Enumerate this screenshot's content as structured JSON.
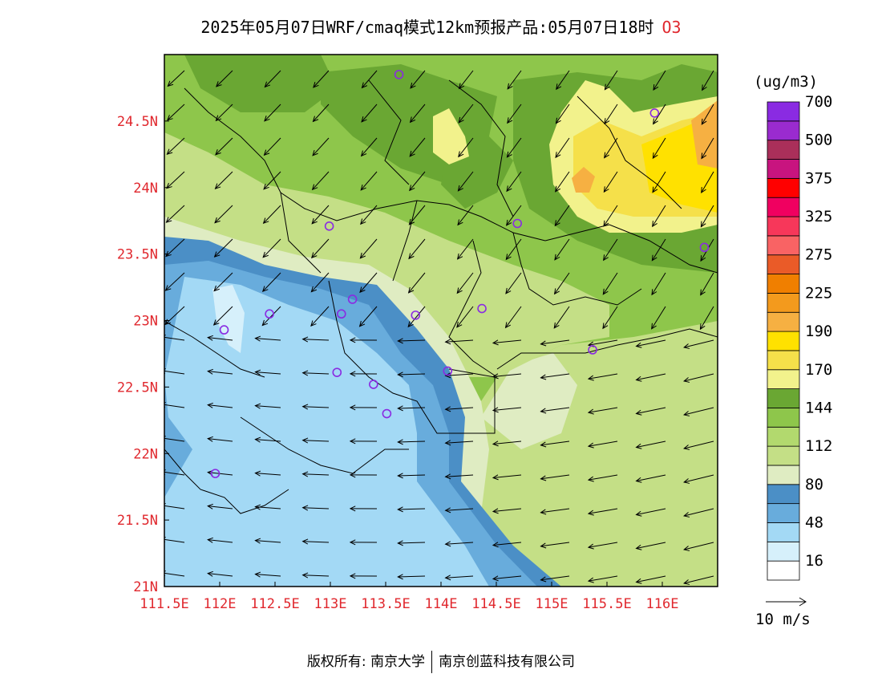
{
  "title": {
    "text": "2025年05月07日WRF/cmaq模式12km预报产品:05月07日18时",
    "pollutant": "O3"
  },
  "map": {
    "lon_range": [
      111.5,
      116.5
    ],
    "lat_range": [
      21.0,
      25.0
    ],
    "x_ticks": [
      {
        "value": 111.5,
        "label": "111.5E"
      },
      {
        "value": 112.0,
        "label": "112E"
      },
      {
        "value": 112.5,
        "label": "112.5E"
      },
      {
        "value": 113.0,
        "label": "113E"
      },
      {
        "value": 113.5,
        "label": "113.5E"
      },
      {
        "value": 114.0,
        "label": "114E"
      },
      {
        "value": 114.5,
        "label": "114.5E"
      },
      {
        "value": 115.0,
        "label": "115E"
      },
      {
        "value": 115.5,
        "label": "115.5E"
      },
      {
        "value": 116.0,
        "label": "116E"
      }
    ],
    "y_ticks": [
      {
        "value": 21.0,
        "label": "21N"
      },
      {
        "value": 21.5,
        "label": "21.5N"
      },
      {
        "value": 22.0,
        "label": "22N"
      },
      {
        "value": 22.5,
        "label": "22.5N"
      },
      {
        "value": 23.0,
        "label": "23N"
      },
      {
        "value": 23.5,
        "label": "23.5N"
      },
      {
        "value": 24.0,
        "label": "24N"
      },
      {
        "value": 24.5,
        "label": "24.5N"
      }
    ],
    "colors": {
      "deep_ocean": "#4b8fc6",
      "mid_blue": "#68acdc",
      "light_blue": "#a3d9f5",
      "pale_blue": "#d6f0fb",
      "pale_green": "#dfecc2",
      "light_green": "#c4df86",
      "green": "#a9d36b",
      "mid_green": "#8ec64b",
      "dark_green": "#6aa733",
      "pale_yellow": "#f2f28c",
      "yellow": "#f5e04a",
      "gold": "#ffe100",
      "orange": "#f6b042",
      "station": "#8a2be2"
    },
    "stations": [
      {
        "lon": 113.62,
        "lat": 24.85
      },
      {
        "lon": 115.93,
        "lat": 24.56
      },
      {
        "lon": 112.99,
        "lat": 23.71
      },
      {
        "lon": 114.69,
        "lat": 23.73
      },
      {
        "lon": 116.38,
        "lat": 23.55
      },
      {
        "lon": 113.2,
        "lat": 23.16
      },
      {
        "lon": 112.45,
        "lat": 23.05
      },
      {
        "lon": 113.1,
        "lat": 23.05
      },
      {
        "lon": 113.77,
        "lat": 23.04
      },
      {
        "lon": 114.37,
        "lat": 23.09
      },
      {
        "lon": 112.04,
        "lat": 22.93
      },
      {
        "lon": 115.37,
        "lat": 22.78
      },
      {
        "lon": 114.06,
        "lat": 22.62
      },
      {
        "lon": 113.06,
        "lat": 22.61
      },
      {
        "lon": 113.39,
        "lat": 22.52
      },
      {
        "lon": 113.51,
        "lat": 22.3
      },
      {
        "lon": 111.96,
        "lat": 21.85
      }
    ]
  },
  "legend": {
    "unit": "(ug/m3)",
    "colors": [
      "#ffffff",
      "#d6f0fb",
      "#a3d9f5",
      "#68acdc",
      "#4b8fc6",
      "#dfecc2",
      "#c4df86",
      "#b2d96e",
      "#8ec64b",
      "#6aa733",
      "#f2f28c",
      "#f5e04a",
      "#ffe100",
      "#f6b042",
      "#f39a1d",
      "#f07f00",
      "#ea5b28",
      "#f96364",
      "#f7375a",
      "#f00060",
      "#ff0000",
      "#c8147f",
      "#aa2f5a",
      "#9a2bcf",
      "#8a2be2"
    ],
    "labels": [
      {
        "text": "16",
        "index": 1
      },
      {
        "text": "48",
        "index": 3
      },
      {
        "text": "80",
        "index": 5
      },
      {
        "text": "112",
        "index": 7
      },
      {
        "text": "144",
        "index": 9
      },
      {
        "text": "170",
        "index": 11
      },
      {
        "text": "190",
        "index": 13
      },
      {
        "text": "225",
        "index": 15
      },
      {
        "text": "275",
        "index": 17
      },
      {
        "text": "325",
        "index": 19
      },
      {
        "text": "375",
        "index": 21
      },
      {
        "text": "500",
        "index": 23
      },
      {
        "text": "700",
        "index": 25
      }
    ],
    "wind_ref": "10 m/s"
  },
  "footer": {
    "left": "版权所有: 南京大学",
    "right": "南京创蓝科技有限公司"
  }
}
